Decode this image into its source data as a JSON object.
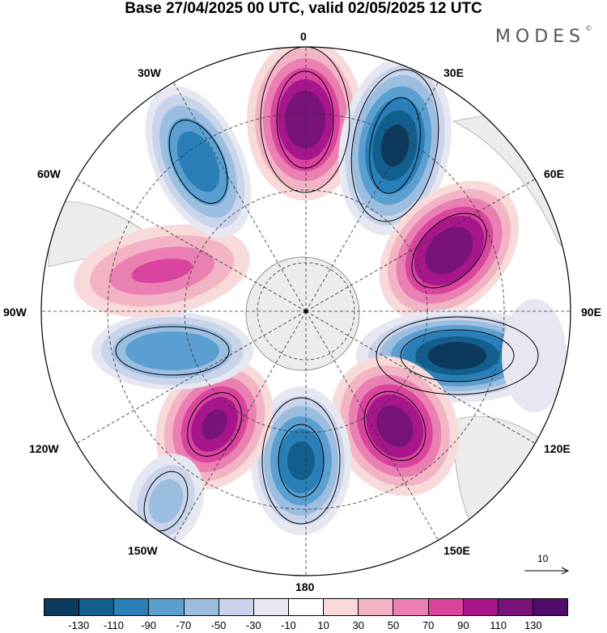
{
  "title": "Base 27/04/2025 00 UTC, valid 02/05/2025 12 UTC",
  "brand": "MODES",
  "brand_mark": "©",
  "longitude_labels": {
    "top": "0",
    "top_right": "30E",
    "right_upper": "60E",
    "right": "90E",
    "right_lower": "120E",
    "bottom_right": "150E",
    "bottom": "180",
    "bottom_left": "150W",
    "left_lower": "120W",
    "left": "90W",
    "left_upper": "60W",
    "top_left": "30W"
  },
  "vector_scale": {
    "value": "10"
  },
  "colorbar": {
    "colors": [
      "#0d3a5c",
      "#125e8c",
      "#2a7fb8",
      "#5a9fd0",
      "#9bbde0",
      "#c9d4ea",
      "#e7e7f2",
      "#ffffff",
      "#f8dada",
      "#f2b4c4",
      "#ea7fb2",
      "#d9449e",
      "#a8168c",
      "#78137a",
      "#4f0c6a"
    ],
    "tick_labels": [
      "-130",
      "-110",
      "-90",
      "-70",
      "-50",
      "-30",
      "-10",
      "10",
      "30",
      "50",
      "70",
      "90",
      "110",
      "130"
    ]
  },
  "map": {
    "projection": "south polar stereographic",
    "land_color": "#ececec",
    "graticule": "dashed",
    "anomaly_centers": [
      {
        "lon": "0",
        "sign": "positive",
        "color": "#5a0d6e"
      },
      {
        "lon": "30E",
        "sign": "negative",
        "color": "#0d3a5c"
      },
      {
        "lon": "60E",
        "sign": "positive",
        "color": "#5a0d6e"
      },
      {
        "lon": "100E",
        "sign": "negative",
        "color": "#0d3a5c"
      },
      {
        "lon": "140E",
        "sign": "positive",
        "color": "#5a0d6e"
      },
      {
        "lon": "180",
        "sign": "negative",
        "color": "#2a7fb8"
      },
      {
        "lon": "130W",
        "sign": "positive",
        "color": "#a8168c"
      },
      {
        "lon": "100W",
        "sign": "negative",
        "color": "#5a9fd0"
      },
      {
        "lon": "80W",
        "sign": "positive",
        "color": "#d9449e"
      },
      {
        "lon": "30W",
        "sign": "negative",
        "color": "#2a7fb8"
      }
    ]
  }
}
